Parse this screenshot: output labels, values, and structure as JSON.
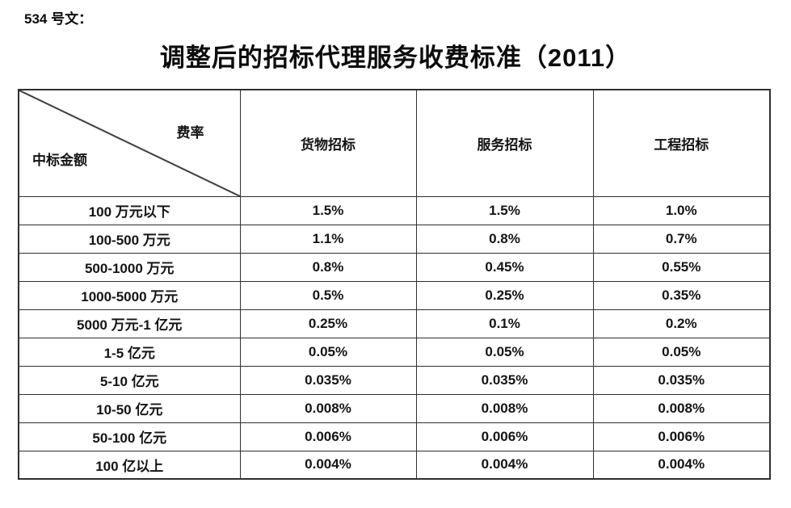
{
  "page": {
    "doc_label": "534 号文：",
    "title": "调整后的招标代理服务收费标准（2011）"
  },
  "table": {
    "corner_top_right": "费率",
    "corner_bottom_left": "中标金额",
    "columns": [
      "货物招标",
      "服务招标",
      "工程招标"
    ],
    "rows": [
      [
        "100 万元以下",
        "1.5%",
        "1.5%",
        "1.0%"
      ],
      [
        "100-500 万元",
        "1.1%",
        "0.8%",
        "0.7%"
      ],
      [
        "500-1000 万元",
        "0.8%",
        "0.45%",
        "0.55%"
      ],
      [
        "1000-5000 万元",
        "0.5%",
        "0.25%",
        "0.35%"
      ],
      [
        "5000 万元-1 亿元",
        "0.25%",
        "0.1%",
        "0.2%"
      ],
      [
        "1-5 亿元",
        "0.05%",
        "0.05%",
        "0.05%"
      ],
      [
        "5-10 亿元",
        "0.035%",
        "0.035%",
        "0.035%"
      ],
      [
        "10-50 亿元",
        "0.008%",
        "0.008%",
        "0.008%"
      ],
      [
        "50-100 亿元",
        "0.006%",
        "0.006%",
        "0.006%"
      ],
      [
        "100 亿以上",
        "0.004%",
        "0.004%",
        "0.004%"
      ]
    ],
    "colors": {
      "border": "#2f2f2f",
      "text": "#141414",
      "background": "#ffffff"
    }
  }
}
